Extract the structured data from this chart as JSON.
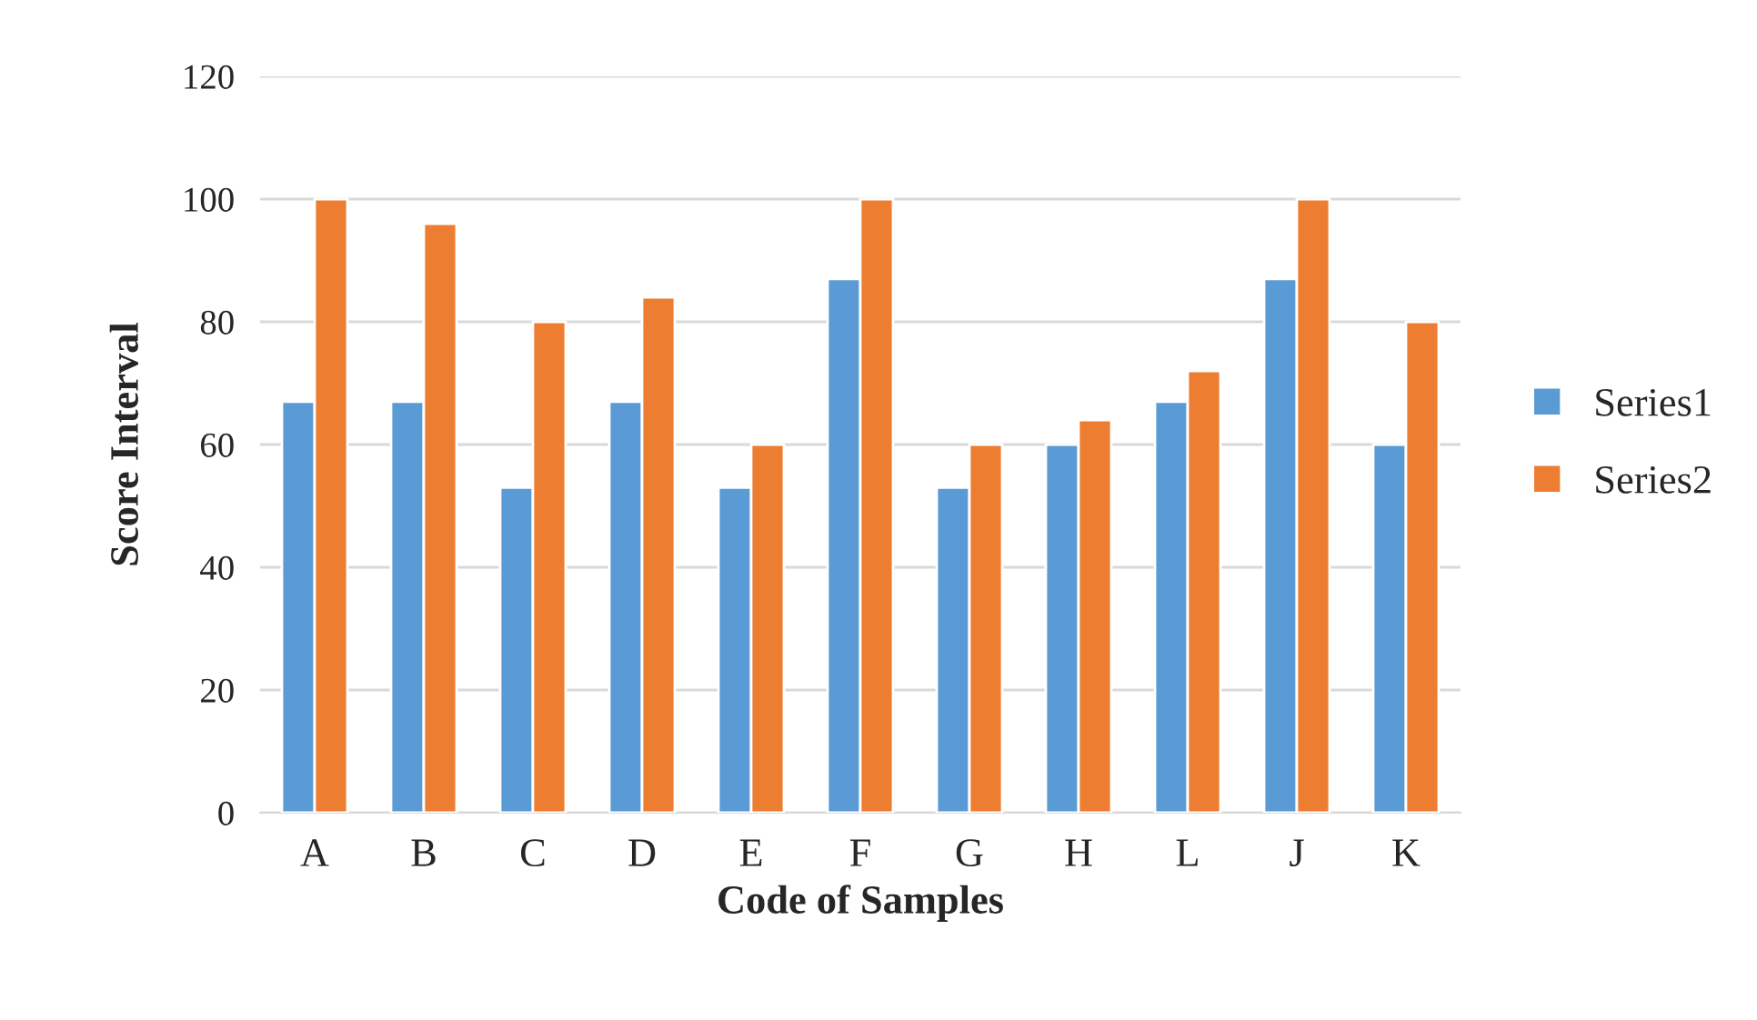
{
  "chart_data": {
    "type": "bar",
    "xlabel": "Code of Samples",
    "ylabel": "Score Interval",
    "categories": [
      "A",
      "B",
      "C",
      "D",
      "E",
      "F",
      "G",
      "H",
      "L",
      "J",
      "K"
    ],
    "series": [
      {
        "name": "Series1",
        "color": "#5b9bd5",
        "values": [
          67,
          67,
          53,
          67,
          53,
          87,
          53,
          60,
          67,
          87,
          60
        ]
      },
      {
        "name": "Series2",
        "color": "#ed7d31",
        "values": [
          100,
          96,
          80,
          84,
          60,
          100,
          60,
          64,
          72,
          100,
          80
        ]
      }
    ],
    "ylim": [
      0,
      120
    ],
    "yticks": [
      0,
      20,
      40,
      60,
      80,
      100,
      120
    ],
    "grid": "y",
    "legend": "right"
  }
}
